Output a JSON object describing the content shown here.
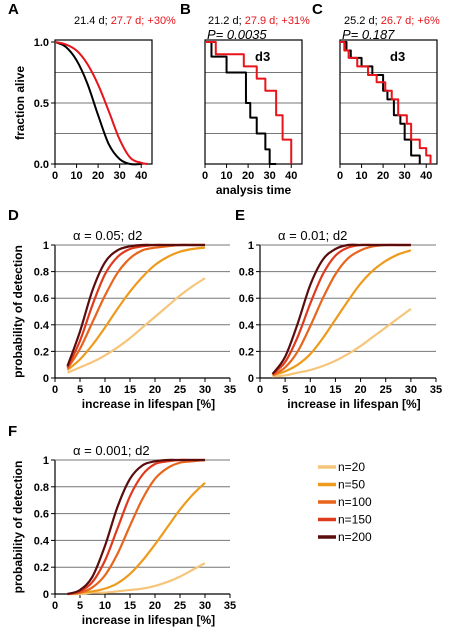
{
  "colors": {
    "black": "#000000",
    "red": "#e8141b",
    "n20": "#f6c57a",
    "n50": "#ee9a1c",
    "n100": "#e8651c",
    "n150": "#e03a1c",
    "n200": "#5a0d0d",
    "grid": "#777777"
  },
  "chart_data": [
    {
      "panel": "A",
      "type": "line",
      "header": {
        "black": "21.4 d; ",
        "red": "27.7 d; +30%"
      },
      "ylabel": "fraction alive",
      "xlabel": "",
      "xlim": [
        0,
        45
      ],
      "ylim": [
        0,
        1.0
      ],
      "xticks": [
        "0",
        "10",
        "20",
        "30",
        "40"
      ],
      "yticks": [
        "0.0",
        "0.5",
        "1.0"
      ],
      "series": [
        {
          "color": "black",
          "x": [
            0,
            5,
            10,
            15,
            20,
            25,
            30,
            35,
            40
          ],
          "y": [
            1.0,
            0.96,
            0.85,
            0.66,
            0.4,
            0.16,
            0.04,
            0.0,
            0.0
          ]
        },
        {
          "color": "red",
          "x": [
            0,
            5,
            10,
            15,
            20,
            25,
            30,
            35,
            40,
            43
          ],
          "y": [
            1.0,
            0.98,
            0.93,
            0.82,
            0.65,
            0.43,
            0.2,
            0.05,
            0.01,
            0.0
          ]
        }
      ]
    },
    {
      "panel": "B",
      "type": "line",
      "header": {
        "black": "21.2 d; ",
        "red": "27.9 d; +31%"
      },
      "pvalue": "P= 0.0035",
      "annotation": "d3",
      "xlabel": "analysis time",
      "xlim": [
        0,
        45
      ],
      "ylim": [
        0,
        1.0
      ],
      "xticks": [
        "0",
        "10",
        "20",
        "30",
        "40"
      ],
      "series": [
        {
          "color": "black",
          "step": true,
          "x": [
            0,
            3,
            10,
            15,
            19,
            21,
            24,
            28,
            30,
            33
          ],
          "y": [
            1.0,
            0.88,
            0.75,
            0.75,
            0.5,
            0.38,
            0.25,
            0.12,
            0.0,
            0.0
          ]
        },
        {
          "color": "red",
          "step": true,
          "x": [
            0,
            5,
            10,
            18,
            24,
            28,
            33,
            36,
            40
          ],
          "y": [
            1.0,
            0.9,
            0.9,
            0.8,
            0.7,
            0.6,
            0.4,
            0.2,
            0.0
          ]
        }
      ]
    },
    {
      "panel": "C",
      "type": "line",
      "header": {
        "black": "25.2 d; ",
        "red": "26.7 d; +6%"
      },
      "pvalue": "P= 0.187",
      "annotation": "d3",
      "xlabel": "",
      "xlim": [
        0,
        45
      ],
      "ylim": [
        0,
        1.0
      ],
      "xticks": [
        "0",
        "10",
        "20",
        "30",
        "40"
      ],
      "series": [
        {
          "color": "black",
          "step": true,
          "x": [
            0,
            3,
            5,
            10,
            15,
            20,
            22,
            25,
            28,
            30,
            33,
            36,
            37
          ],
          "y": [
            1.0,
            0.93,
            0.87,
            0.8,
            0.73,
            0.6,
            0.53,
            0.4,
            0.33,
            0.2,
            0.07,
            0.07,
            0.0
          ]
        },
        {
          "color": "red",
          "step": true,
          "x": [
            0,
            2,
            4,
            8,
            13,
            17,
            21,
            24,
            27,
            31,
            33,
            37,
            40,
            42
          ],
          "y": [
            1.0,
            0.93,
            0.87,
            0.8,
            0.73,
            0.67,
            0.6,
            0.53,
            0.4,
            0.33,
            0.2,
            0.13,
            0.07,
            0.0
          ]
        }
      ]
    },
    {
      "panel": "D",
      "type": "line",
      "title": "α = 0.05; d2",
      "ylabel": "probability of detection",
      "xlabel": "increase in lifespan [%]",
      "xlim": [
        0,
        35
      ],
      "ylim": [
        0,
        1
      ],
      "xticks": [
        "0",
        "5",
        "10",
        "15",
        "20",
        "25",
        "30",
        "35"
      ],
      "yticks": [
        "0",
        "0.2",
        "0.4",
        "0.6",
        "0.8",
        "1"
      ],
      "x": [
        2.5,
        5,
        7.5,
        10,
        12.5,
        15,
        17.5,
        20,
        22.5,
        25,
        27.5,
        30
      ],
      "series": [
        {
          "name": "n=20",
          "color": "n20",
          "values": [
            0.04,
            0.08,
            0.12,
            0.17,
            0.23,
            0.3,
            0.38,
            0.46,
            0.54,
            0.62,
            0.69,
            0.75
          ]
        },
        {
          "name": "n=50",
          "color": "n50",
          "values": [
            0.06,
            0.14,
            0.25,
            0.38,
            0.52,
            0.65,
            0.76,
            0.85,
            0.91,
            0.95,
            0.97,
            0.98
          ]
        },
        {
          "name": "n=100",
          "color": "n100",
          "values": [
            0.07,
            0.22,
            0.42,
            0.62,
            0.79,
            0.9,
            0.96,
            0.98,
            0.99,
            1.0,
            1.0,
            1.0
          ]
        },
        {
          "name": "n=150",
          "color": "n150",
          "values": [
            0.08,
            0.28,
            0.55,
            0.78,
            0.91,
            0.97,
            0.99,
            1.0,
            1.0,
            1.0,
            1.0,
            1.0
          ]
        },
        {
          "name": "n=200",
          "color": "n200",
          "values": [
            0.09,
            0.35,
            0.66,
            0.87,
            0.96,
            0.99,
            1.0,
            1.0,
            1.0,
            1.0,
            1.0,
            1.0
          ]
        }
      ]
    },
    {
      "panel": "E",
      "type": "line",
      "title": "α = 0.01; d2",
      "xlabel": "increase in lifespan [%]",
      "xlim": [
        0,
        35
      ],
      "ylim": [
        0,
        1
      ],
      "xticks": [
        "0",
        "5",
        "10",
        "15",
        "20",
        "25",
        "30",
        "35"
      ],
      "yticks": [
        "0",
        "0.2",
        "0.4",
        "0.6",
        "0.8",
        "1"
      ],
      "x": [
        2.5,
        5,
        7.5,
        10,
        12.5,
        15,
        17.5,
        20,
        22.5,
        25,
        27.5,
        30
      ],
      "series": [
        {
          "name": "n=20",
          "color": "n20",
          "values": [
            0.01,
            0.02,
            0.04,
            0.06,
            0.09,
            0.13,
            0.18,
            0.24,
            0.31,
            0.38,
            0.45,
            0.52
          ]
        },
        {
          "name": "n=50",
          "color": "n50",
          "values": [
            0.02,
            0.05,
            0.1,
            0.18,
            0.3,
            0.44,
            0.58,
            0.71,
            0.81,
            0.88,
            0.93,
            0.96
          ]
        },
        {
          "name": "n=100",
          "color": "n100",
          "values": [
            0.02,
            0.08,
            0.2,
            0.39,
            0.6,
            0.78,
            0.9,
            0.96,
            0.99,
            1.0,
            1.0,
            1.0
          ]
        },
        {
          "name": "n=150",
          "color": "n150",
          "values": [
            0.03,
            0.12,
            0.31,
            0.56,
            0.78,
            0.92,
            0.98,
            1.0,
            1.0,
            1.0,
            1.0,
            1.0
          ]
        },
        {
          "name": "n=200",
          "color": "n200",
          "values": [
            0.03,
            0.16,
            0.41,
            0.7,
            0.89,
            0.97,
            1.0,
            1.0,
            1.0,
            1.0,
            1.0,
            1.0
          ]
        }
      ]
    },
    {
      "panel": "F",
      "type": "line",
      "title": "α = 0.001; d2",
      "ylabel": "probability of detection",
      "xlabel": "increase in lifespan [%]",
      "xlim": [
        0,
        35
      ],
      "ylim": [
        0,
        1
      ],
      "xticks": [
        "0",
        "5",
        "10",
        "15",
        "20",
        "25",
        "30",
        "35"
      ],
      "yticks": [
        "0",
        "0.2",
        "0.4",
        "0.6",
        "0.8",
        "1"
      ],
      "x": [
        2.5,
        5,
        7.5,
        10,
        12.5,
        15,
        17.5,
        20,
        22.5,
        25,
        27.5,
        30
      ],
      "series": [
        {
          "name": "n=20",
          "color": "n20",
          "values": [
            0.0,
            0.0,
            0.01,
            0.01,
            0.02,
            0.03,
            0.04,
            0.06,
            0.09,
            0.13,
            0.18,
            0.23
          ]
        },
        {
          "name": "n=50",
          "color": "n50",
          "values": [
            0.0,
            0.01,
            0.02,
            0.04,
            0.08,
            0.15,
            0.25,
            0.37,
            0.5,
            0.63,
            0.74,
            0.83
          ]
        },
        {
          "name": "n=100",
          "color": "n100",
          "values": [
            0.0,
            0.01,
            0.05,
            0.14,
            0.3,
            0.51,
            0.71,
            0.86,
            0.94,
            0.98,
            0.99,
            1.0
          ]
        },
        {
          "name": "n=150",
          "color": "n150",
          "values": [
            0.0,
            0.02,
            0.09,
            0.25,
            0.49,
            0.73,
            0.89,
            0.97,
            0.99,
            1.0,
            1.0,
            1.0
          ]
        },
        {
          "name": "n=200",
          "color": "n200",
          "values": [
            0.0,
            0.03,
            0.13,
            0.36,
            0.65,
            0.86,
            0.96,
            0.99,
            1.0,
            1.0,
            1.0,
            1.0
          ]
        }
      ]
    }
  ],
  "legend": [
    {
      "label": "n=20",
      "color": "n20"
    },
    {
      "label": "n=50",
      "color": "n50"
    },
    {
      "label": "n=100",
      "color": "n100"
    },
    {
      "label": "n=150",
      "color": "n150"
    },
    {
      "label": "n=200",
      "color": "n200"
    }
  ]
}
